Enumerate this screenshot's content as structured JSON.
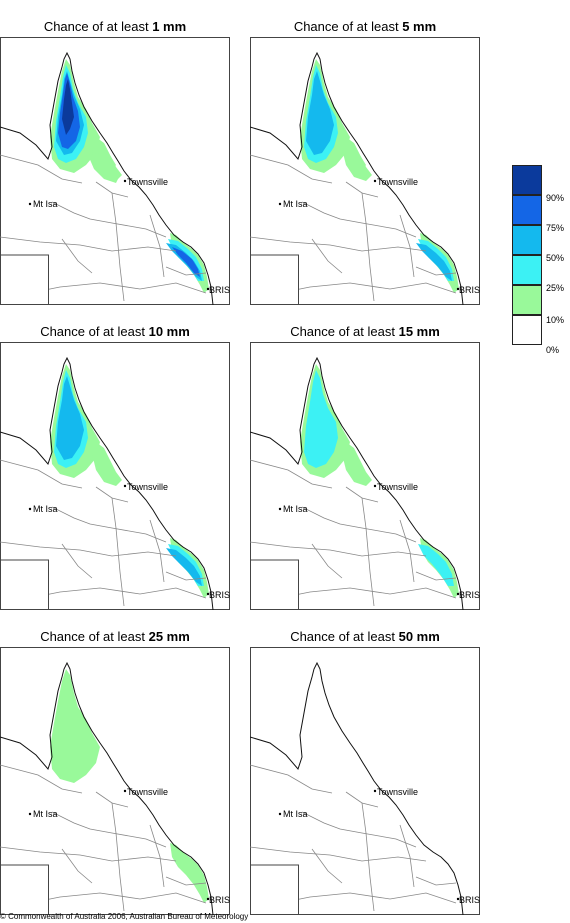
{
  "panels": [
    {
      "prefix": "Chance of at least ",
      "value": "1 mm",
      "level": 6
    },
    {
      "prefix": "Chance of at least ",
      "value": "5 mm",
      "level": 5
    },
    {
      "prefix": "Chance of at least ",
      "value": "10 mm",
      "level": 4
    },
    {
      "prefix": "Chance of at least ",
      "value": "15 mm",
      "level": 3
    },
    {
      "prefix": "Chance of at least ",
      "value": "25 mm",
      "level": 2
    },
    {
      "prefix": "Chance of at least ",
      "value": "50 mm",
      "level": 1
    }
  ],
  "places": {
    "townsville": "Townsville",
    "mt_isa": "Mt Isa",
    "brisbane": "BRIS"
  },
  "legend": {
    "labels": [
      "90%",
      "75%",
      "50%",
      "25%",
      "10%",
      "0%"
    ],
    "colors": [
      "#0b3a9c",
      "#1466e6",
      "#14b9ee",
      "#3cf1f4",
      "#99f99a",
      "#ffffff"
    ]
  },
  "copyright": "© Commonwealth of Australia 2006, Australian Bureau of Meteorology"
}
